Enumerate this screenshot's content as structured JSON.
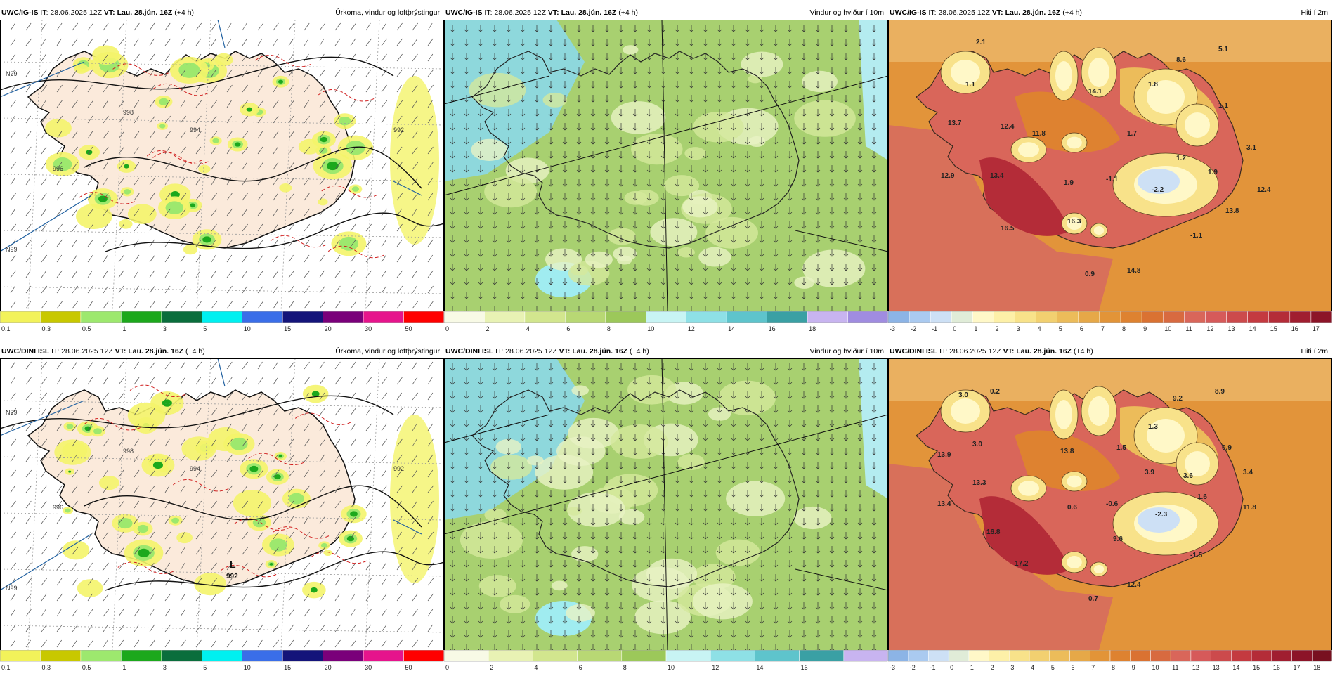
{
  "panels": [
    {
      "model": "UWC/IG-IS",
      "it": " IT: 28.06.2025 12Z ",
      "vt_label": "VT:",
      "vt": "Lau. 28.jún. 16Z",
      "lead": " (+4 h)",
      "title": "Úrkoma, vindur og loftþrýstingur",
      "kind": "precip",
      "colorbar": {
        "labels": [
          "0.1",
          "0.3",
          "0.5",
          "1",
          "3",
          "5",
          "10",
          "15",
          "20",
          "30",
          "50"
        ],
        "colors": [
          "#f2f25a",
          "#c8c800",
          "#9de86e",
          "#1ca81c",
          "#0a6e3c",
          "#00f0f0",
          "#3a6ee8",
          "#14147a",
          "#7a007a",
          "#e6148c",
          "#ff0000"
        ]
      },
      "map_labels": [
        "994",
        "992",
        "996",
        "998",
        "N99",
        "N99"
      ],
      "iso_labels": []
    },
    {
      "model": "UWC/IG-IS",
      "it": " IT: 28.06.2025 12Z ",
      "vt_label": "VT:",
      "vt": "Lau. 28.jún. 16Z",
      "lead": " (+4 h)",
      "title": "Vindur og hviður í 10m",
      "kind": "wind",
      "colorbar": {
        "labels": [
          "0",
          "2",
          "4",
          "6",
          "8",
          "10",
          "12",
          "14",
          "16",
          "18"
        ],
        "colors": [
          "#f8fae6",
          "#e8f2b4",
          "#d2e68e",
          "#b8d874",
          "#9cc85a",
          "#c8f4f4",
          "#8ee0e6",
          "#5ec4cc",
          "#3aa0a4",
          "#c8b4f0",
          "#a08ce0"
        ]
      }
    },
    {
      "model": "UWC/IG-IS",
      "it": " IT: 28.06.2025 12Z ",
      "vt_label": "VT:",
      "vt": "Lau. 28.jún. 16Z",
      "lead": " (+4 h)",
      "title": "Hiti í 2m",
      "kind": "temp",
      "colorbar": {
        "labels": [
          "-3",
          "-2",
          "-1",
          "0",
          "1",
          "2",
          "3",
          "4",
          "5",
          "6",
          "7",
          "8",
          "9",
          "10",
          "11",
          "12",
          "13",
          "14",
          "15",
          "16",
          "17"
        ],
        "colors": [
          "#8cb4e6",
          "#aacaf0",
          "#cde0f5",
          "#e0ecd8",
          "#fff8c8",
          "#fdf0a8",
          "#f8e28a",
          "#f2d070",
          "#ecbc5a",
          "#e6a848",
          "#e29438",
          "#de8230",
          "#da7232",
          "#d86a40",
          "#d9665a",
          "#d65a5a",
          "#cc4a4c",
          "#c43a40",
          "#b42c38",
          "#a01e30",
          "#8c1428"
        ]
      },
      "temps": [
        {
          "v": "2.1"
        },
        {
          "v": "8.6"
        },
        {
          "v": "5.1"
        },
        {
          "v": "1.1"
        },
        {
          "v": "14.1"
        },
        {
          "v": "1.8"
        },
        {
          "v": "1.1"
        },
        {
          "v": "13.7"
        },
        {
          "v": "12.4"
        },
        {
          "v": "11.8"
        },
        {
          "v": "1.7"
        },
        {
          "v": "3.1"
        },
        {
          "v": "1.2"
        },
        {
          "v": "12.9"
        },
        {
          "v": "13.4"
        },
        {
          "v": "1.9"
        },
        {
          "v": "-1.1"
        },
        {
          "v": "-2.2"
        },
        {
          "v": "1.9"
        },
        {
          "v": "12.4"
        },
        {
          "v": "13.8"
        },
        {
          "v": "16.5"
        },
        {
          "v": "16.3"
        },
        {
          "v": "-1.1"
        },
        {
          "v": "0.9"
        },
        {
          "v": "14.8"
        }
      ]
    },
    {
      "model": "UWC/DINI ISL",
      "it": " IT: 28.06.2025 12Z ",
      "vt_label": "VT:",
      "vt": "Lau. 28.jún. 16Z",
      "lead": " (+4 h)",
      "title": "Úrkoma, vindur og loftþrýstingur",
      "kind": "precip",
      "colorbar": {
        "labels": [
          "0.1",
          "0.3",
          "0.5",
          "1",
          "3",
          "5",
          "10",
          "15",
          "20",
          "30",
          "50"
        ],
        "colors": [
          "#f2f25a",
          "#c8c800",
          "#9de86e",
          "#1ca81c",
          "#0a6e3c",
          "#00f0f0",
          "#3a6ee8",
          "#14147a",
          "#7a007a",
          "#e6148c",
          "#ff0000"
        ]
      },
      "map_labels": [
        "994",
        "992",
        "996",
        "998",
        "N99",
        "N99"
      ],
      "low": {
        "letter": "L",
        "value": "992"
      }
    },
    {
      "model": "UWC/DINI ISL",
      "it": " IT: 28.06.2025 12Z ",
      "vt_label": "VT:",
      "vt": "Lau. 28.jún. 16Z",
      "lead": " (+4 h)",
      "title": "Vindur og hviður í 10m",
      "kind": "wind",
      "colorbar": {
        "labels": [
          "0",
          "2",
          "4",
          "6",
          "8",
          "10",
          "12",
          "14",
          "16"
        ],
        "colors": [
          "#f8fae6",
          "#e8f2b4",
          "#d2e68e",
          "#b8d874",
          "#9cc85a",
          "#c8f4f4",
          "#8ee0e6",
          "#5ec4cc",
          "#3aa0a4",
          "#c8b4f0"
        ]
      }
    },
    {
      "model": "UWC/DINI ISL",
      "it": " IT: 28.06.2025 12Z ",
      "vt_label": "VT:",
      "vt": "Lau. 28.jún. 16Z",
      "lead": " (+4 h)",
      "title": "Hiti í 2m",
      "kind": "temp",
      "colorbar": {
        "labels": [
          "-3",
          "-2",
          "-1",
          "0",
          "1",
          "2",
          "3",
          "4",
          "5",
          "6",
          "7",
          "8",
          "9",
          "10",
          "11",
          "12",
          "13",
          "14",
          "15",
          "16",
          "17",
          "18"
        ],
        "colors": [
          "#8cb4e6",
          "#aacaf0",
          "#cde0f5",
          "#e0ecd8",
          "#fff8c8",
          "#fdf0a8",
          "#f8e28a",
          "#f2d070",
          "#ecbc5a",
          "#e6a848",
          "#e29438",
          "#de8230",
          "#da7232",
          "#d86a40",
          "#d9665a",
          "#d65a5a",
          "#cc4a4c",
          "#c43a40",
          "#b42c38",
          "#a01e30",
          "#8c1428",
          "#781020"
        ]
      },
      "temps": [
        {
          "v": "3.0"
        },
        {
          "v": "0.2"
        },
        {
          "v": "9.2"
        },
        {
          "v": "8.9"
        },
        {
          "v": "1.3"
        },
        {
          "v": "13.9"
        },
        {
          "v": "3.0"
        },
        {
          "v": "13.8"
        },
        {
          "v": "1.5"
        },
        {
          "v": "0.9"
        },
        {
          "v": "3.9"
        },
        {
          "v": "3.6"
        },
        {
          "v": "3.4"
        },
        {
          "v": "13.3"
        },
        {
          "v": "1.6"
        },
        {
          "v": "13.4"
        },
        {
          "v": "0.6"
        },
        {
          "v": "-0.6"
        },
        {
          "v": "-2.3"
        },
        {
          "v": "11.8"
        },
        {
          "v": "16.8"
        },
        {
          "v": "9.6"
        },
        {
          "v": "-1.5"
        },
        {
          "v": "17.2"
        },
        {
          "v": "12.4"
        },
        {
          "v": "0.7"
        }
      ]
    }
  ]
}
